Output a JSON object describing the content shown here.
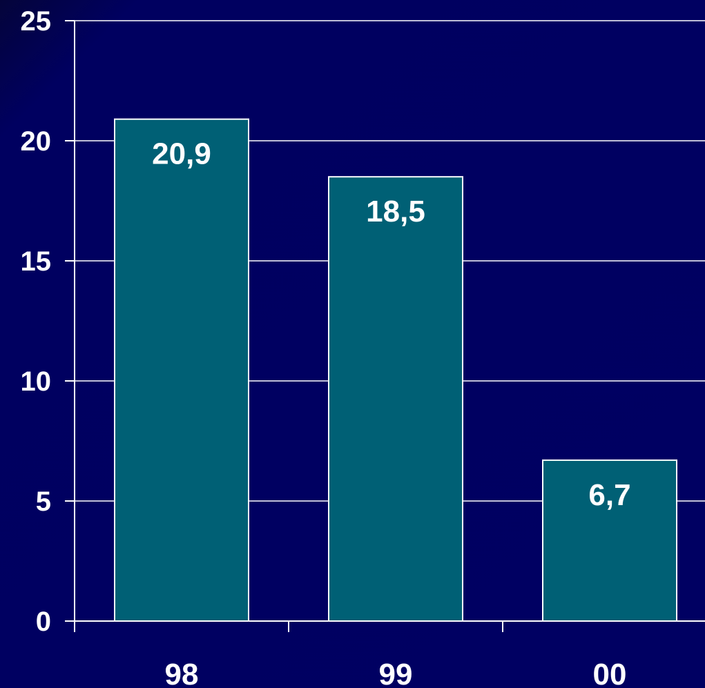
{
  "chart_data": {
    "type": "bar",
    "title": "",
    "xlabel": "",
    "ylabel": "",
    "categories": [
      "98",
      "99",
      "00"
    ],
    "values": [
      20.9,
      18.5,
      6.7
    ],
    "data_labels": [
      "20,9",
      "18,5",
      "6,7"
    ],
    "y_ticks": [
      0,
      5,
      10,
      15,
      20,
      25
    ],
    "y_tick_labels": [
      "0",
      "5",
      "10",
      "15",
      "20",
      "25"
    ],
    "ylim": [
      0,
      25
    ],
    "grid": true,
    "legend": "none",
    "colors": {
      "background": "#000060",
      "bar_fill": "#006075",
      "bar_stroke": "#ffffff",
      "grid": "#ffffff",
      "text": "#ffffff"
    }
  }
}
